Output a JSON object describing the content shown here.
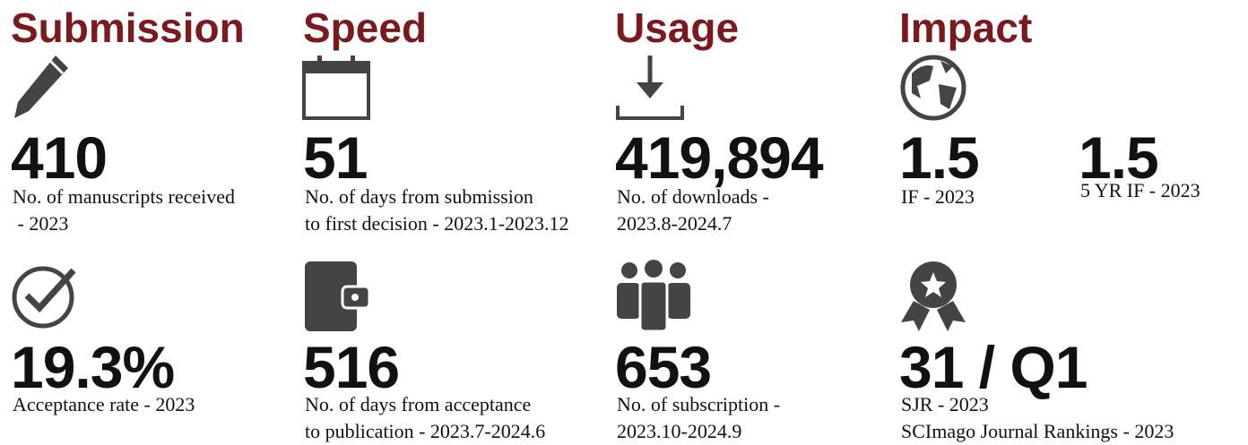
{
  "columns": [
    {
      "heading": "Submission",
      "stats": [
        {
          "value": "410",
          "label": [
            "No. of manuscripts received",
            " - 2023"
          ]
        },
        {
          "value": "19.3%",
          "label": [
            "Acceptance rate - 2023"
          ]
        }
      ]
    },
    {
      "heading": "Speed",
      "stats": [
        {
          "value": "51",
          "label": [
            "No. of days from submission",
            "to first decision - 2023.1-2023.12"
          ]
        },
        {
          "value": "516",
          "label": [
            "No. of days from acceptance",
            "to publication - 2023.7-2024.6"
          ]
        }
      ]
    },
    {
      "heading": "Usage",
      "stats": [
        {
          "value": "419,894",
          "label": [
            "No. of downloads -",
            "2023.8-2024.7"
          ]
        },
        {
          "value": "653",
          "label": [
            "No. of subscription -",
            "2023.10-2024.9"
          ]
        }
      ]
    },
    {
      "heading": "Impact",
      "stats": [
        {
          "value": "1.5",
          "label": [
            "IF - 2023"
          ]
        },
        {
          "value": "1.5",
          "label": [
            "5 YR IF - 2023"
          ]
        },
        {
          "value": "31 / Q1",
          "label": [
            "SJR - 2023",
            "SCImago Journal Rankings - 2023"
          ]
        }
      ]
    }
  ]
}
